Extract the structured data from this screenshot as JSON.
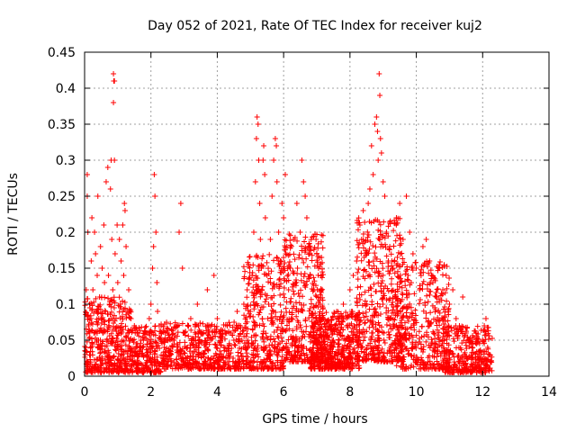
{
  "chart_data": {
    "type": "scatter",
    "title": "Day 052 of 2021, Rate Of TEC Index for receiver kuj2",
    "xlabel": "GPS time / hours",
    "ylabel": "ROTI / TECUs",
    "xlim": [
      0,
      14
    ],
    "ylim": [
      0,
      0.45
    ],
    "xticks": [
      0,
      2,
      4,
      6,
      8,
      10,
      12,
      14
    ],
    "yticks": [
      0,
      0.05,
      0.1,
      0.15,
      0.2,
      0.25,
      0.3,
      0.35,
      0.4,
      0.45
    ],
    "grid": true,
    "marker": "+",
    "color": "#ff0000",
    "series": [
      {
        "name": "ROTI",
        "points": [
          [
            0.02,
            0.03
          ],
          [
            0.05,
            0.12
          ],
          [
            0.08,
            0.28
          ],
          [
            0.08,
            0.25
          ],
          [
            0.1,
            0.2
          ],
          [
            0.12,
            0.07
          ],
          [
            0.15,
            0.1
          ],
          [
            0.18,
            0.04
          ],
          [
            0.2,
            0.16
          ],
          [
            0.22,
            0.22
          ],
          [
            0.25,
            0.12
          ],
          [
            0.28,
            0.06
          ],
          [
            0.3,
            0.2
          ],
          [
            0.33,
            0.17
          ],
          [
            0.35,
            0.09
          ],
          [
            0.38,
            0.14
          ],
          [
            0.4,
            0.25
          ],
          [
            0.42,
            0.05
          ],
          [
            0.45,
            0.11
          ],
          [
            0.48,
            0.18
          ],
          [
            0.5,
            0.08
          ],
          [
            0.53,
            0.15
          ],
          [
            0.55,
            0.06
          ],
          [
            0.58,
            0.21
          ],
          [
            0.6,
            0.13
          ],
          [
            0.63,
            0.09
          ],
          [
            0.65,
            0.27
          ],
          [
            0.67,
            0.05
          ],
          [
            0.7,
            0.29
          ],
          [
            0.72,
            0.14
          ],
          [
            0.75,
            0.1
          ],
          [
            0.78,
            0.26
          ],
          [
            0.8,
            0.3
          ],
          [
            0.82,
            0.19
          ],
          [
            0.85,
            0.12
          ],
          [
            0.87,
            0.42
          ],
          [
            0.88,
            0.41
          ],
          [
            0.9,
            0.41
          ],
          [
            0.87,
            0.38
          ],
          [
            0.9,
            0.3
          ],
          [
            0.92,
            0.17
          ],
          [
            0.95,
            0.08
          ],
          [
            0.98,
            0.21
          ],
          [
            1.0,
            0.13
          ],
          [
            1.03,
            0.06
          ],
          [
            1.05,
            0.19
          ],
          [
            1.08,
            0.1
          ],
          [
            1.1,
            0.16
          ],
          [
            1.13,
            0.05
          ],
          [
            1.15,
            0.21
          ],
          [
            1.18,
            0.14
          ],
          [
            1.2,
            0.24
          ],
          [
            1.22,
            0.23
          ],
          [
            1.25,
            0.18
          ],
          [
            1.28,
            0.09
          ],
          [
            1.3,
            0.06
          ],
          [
            1.33,
            0.12
          ],
          [
            1.35,
            0.04
          ],
          [
            1.4,
            0.08
          ],
          [
            1.45,
            0.05
          ],
          [
            1.5,
            0.07
          ],
          [
            1.55,
            0.04
          ],
          [
            1.6,
            0.06
          ],
          [
            1.65,
            0.03
          ],
          [
            1.7,
            0.05
          ],
          [
            1.75,
            0.04
          ],
          [
            1.8,
            0.06
          ],
          [
            1.85,
            0.03
          ],
          [
            1.9,
            0.05
          ],
          [
            1.95,
            0.08
          ],
          [
            2.0,
            0.1
          ],
          [
            2.05,
            0.15
          ],
          [
            2.08,
            0.18
          ],
          [
            2.1,
            0.28
          ],
          [
            2.12,
            0.25
          ],
          [
            2.15,
            0.2
          ],
          [
            2.18,
            0.13
          ],
          [
            2.2,
            0.09
          ],
          [
            2.25,
            0.07
          ],
          [
            2.3,
            0.05
          ],
          [
            2.4,
            0.04
          ],
          [
            2.5,
            0.06
          ],
          [
            2.6,
            0.03
          ],
          [
            2.7,
            0.05
          ],
          [
            2.8,
            0.07
          ],
          [
            2.85,
            0.2
          ],
          [
            2.9,
            0.24
          ],
          [
            2.95,
            0.15
          ],
          [
            3.0,
            0.06
          ],
          [
            3.1,
            0.04
          ],
          [
            3.2,
            0.08
          ],
          [
            3.3,
            0.05
          ],
          [
            3.4,
            0.1
          ],
          [
            3.5,
            0.06
          ],
          [
            3.6,
            0.03
          ],
          [
            3.7,
            0.12
          ],
          [
            3.8,
            0.05
          ],
          [
            3.9,
            0.14
          ],
          [
            4.0,
            0.08
          ],
          [
            4.1,
            0.05
          ],
          [
            4.2,
            0.04
          ],
          [
            4.3,
            0.07
          ],
          [
            4.4,
            0.06
          ],
          [
            4.5,
            0.05
          ],
          [
            4.6,
            0.09
          ],
          [
            4.7,
            0.07
          ],
          [
            4.8,
            0.1
          ],
          [
            4.9,
            0.12
          ],
          [
            5.0,
            0.09
          ],
          [
            5.05,
            0.14
          ],
          [
            5.1,
            0.2
          ],
          [
            5.15,
            0.27
          ],
          [
            5.18,
            0.33
          ],
          [
            5.2,
            0.36
          ],
          [
            5.23,
            0.35
          ],
          [
            5.25,
            0.3
          ],
          [
            5.28,
            0.24
          ],
          [
            5.3,
            0.19
          ],
          [
            5.33,
            0.15
          ],
          [
            5.35,
            0.12
          ],
          [
            5.38,
            0.3
          ],
          [
            5.4,
            0.32
          ],
          [
            5.43,
            0.28
          ],
          [
            5.45,
            0.22
          ],
          [
            5.5,
            0.14
          ],
          [
            5.55,
            0.1
          ],
          [
            5.6,
            0.19
          ],
          [
            5.65,
            0.25
          ],
          [
            5.7,
            0.3
          ],
          [
            5.75,
            0.33
          ],
          [
            5.78,
            0.32
          ],
          [
            5.8,
            0.27
          ],
          [
            5.85,
            0.2
          ],
          [
            5.9,
            0.16
          ],
          [
            5.95,
            0.24
          ],
          [
            6.0,
            0.22
          ],
          [
            6.05,
            0.28
          ],
          [
            6.1,
            0.18
          ],
          [
            6.15,
            0.12
          ],
          [
            6.2,
            0.15
          ],
          [
            6.3,
            0.19
          ],
          [
            6.4,
            0.24
          ],
          [
            6.5,
            0.2
          ],
          [
            6.55,
            0.3
          ],
          [
            6.6,
            0.27
          ],
          [
            6.65,
            0.25
          ],
          [
            6.7,
            0.22
          ],
          [
            6.75,
            0.18
          ],
          [
            6.8,
            0.14
          ],
          [
            6.9,
            0.12
          ],
          [
            7.0,
            0.17
          ],
          [
            7.05,
            0.15
          ],
          [
            7.1,
            0.1
          ],
          [
            7.2,
            0.08
          ],
          [
            7.3,
            0.06
          ],
          [
            7.4,
            0.07
          ],
          [
            7.5,
            0.05
          ],
          [
            7.6,
            0.09
          ],
          [
            7.7,
            0.06
          ],
          [
            7.8,
            0.1
          ],
          [
            7.9,
            0.07
          ],
          [
            8.0,
            0.12
          ],
          [
            8.05,
            0.09
          ],
          [
            8.1,
            0.14
          ],
          [
            8.2,
            0.16
          ],
          [
            8.3,
            0.21
          ],
          [
            8.35,
            0.19
          ],
          [
            8.4,
            0.23
          ],
          [
            8.5,
            0.17
          ],
          [
            8.55,
            0.24
          ],
          [
            8.6,
            0.26
          ],
          [
            8.65,
            0.32
          ],
          [
            8.7,
            0.28
          ],
          [
            8.75,
            0.35
          ],
          [
            8.8,
            0.36
          ],
          [
            8.83,
            0.34
          ],
          [
            8.85,
            0.3
          ],
          [
            8.88,
            0.42
          ],
          [
            8.9,
            0.39
          ],
          [
            8.92,
            0.33
          ],
          [
            8.95,
            0.31
          ],
          [
            9.0,
            0.27
          ],
          [
            9.05,
            0.25
          ],
          [
            9.1,
            0.2
          ],
          [
            9.2,
            0.18
          ],
          [
            9.3,
            0.15
          ],
          [
            9.4,
            0.22
          ],
          [
            9.5,
            0.24
          ],
          [
            9.6,
            0.19
          ],
          [
            9.7,
            0.25
          ],
          [
            9.8,
            0.2
          ],
          [
            9.9,
            0.17
          ],
          [
            10.0,
            0.15
          ],
          [
            10.1,
            0.12
          ],
          [
            10.2,
            0.18
          ],
          [
            10.3,
            0.19
          ],
          [
            10.4,
            0.16
          ],
          [
            10.5,
            0.13
          ],
          [
            10.6,
            0.11
          ],
          [
            10.7,
            0.15
          ],
          [
            10.8,
            0.12
          ],
          [
            10.9,
            0.14
          ],
          [
            11.0,
            0.1
          ],
          [
            11.1,
            0.12
          ],
          [
            11.2,
            0.08
          ],
          [
            11.3,
            0.07
          ],
          [
            11.4,
            0.11
          ],
          [
            11.5,
            0.06
          ],
          [
            11.6,
            0.05
          ],
          [
            11.7,
            0.04
          ],
          [
            11.8,
            0.06
          ],
          [
            11.9,
            0.03
          ],
          [
            12.0,
            0.05
          ],
          [
            12.05,
            0.07
          ],
          [
            12.1,
            0.08
          ],
          [
            12.15,
            0.04
          ],
          [
            12.2,
            0.03
          ],
          [
            12.25,
            0.02
          ]
        ],
        "bands": [
          {
            "x_from": 0.0,
            "x_to": 1.4,
            "y_from": 0.005,
            "y_to": 0.11,
            "count": 420
          },
          {
            "x_from": 1.4,
            "x_to": 2.3,
            "y_from": 0.005,
            "y_to": 0.07,
            "count": 220
          },
          {
            "x_from": 2.3,
            "x_to": 4.8,
            "y_from": 0.01,
            "y_to": 0.075,
            "count": 520
          },
          {
            "x_from": 4.8,
            "x_to": 6.0,
            "y_from": 0.01,
            "y_to": 0.17,
            "count": 360
          },
          {
            "x_from": 6.0,
            "x_to": 7.2,
            "y_from": 0.02,
            "y_to": 0.2,
            "count": 380
          },
          {
            "x_from": 6.8,
            "x_to": 8.3,
            "y_from": 0.01,
            "y_to": 0.09,
            "count": 520
          },
          {
            "x_from": 8.2,
            "x_to": 9.6,
            "y_from": 0.02,
            "y_to": 0.22,
            "count": 480
          },
          {
            "x_from": 9.4,
            "x_to": 11.0,
            "y_from": 0.01,
            "y_to": 0.16,
            "count": 420
          },
          {
            "x_from": 10.8,
            "x_to": 12.3,
            "y_from": 0.005,
            "y_to": 0.07,
            "count": 320
          }
        ]
      }
    ]
  }
}
